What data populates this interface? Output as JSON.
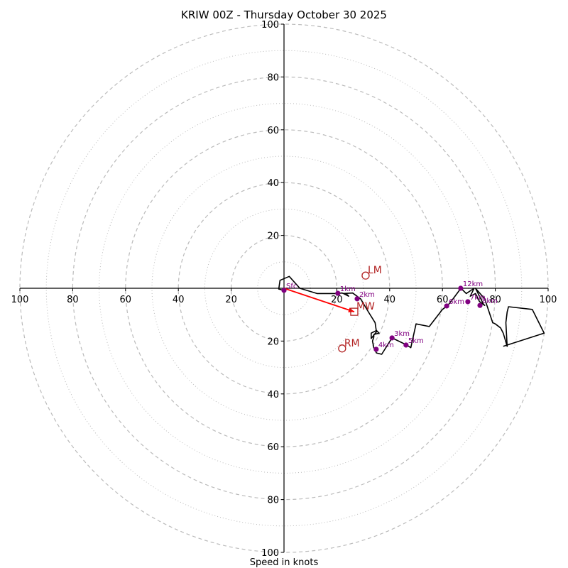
{
  "chart_data": {
    "type": "line",
    "subtype": "hodograph",
    "title": "KRIW 00Z - Thursday October 30 2025",
    "xlabel": "Speed in knots",
    "ylabel": "",
    "xlim": [
      -100,
      100
    ],
    "ylim": [
      -100,
      100
    ],
    "ring_major": [
      20,
      40,
      60,
      80,
      100
    ],
    "ring_minor": [
      10,
      30,
      50,
      70,
      90
    ],
    "x_tick_labels": [
      "100",
      "80",
      "60",
      "40",
      "20",
      "20",
      "40",
      "60",
      "80",
      "100"
    ],
    "x_tick_values": [
      -100,
      -80,
      -60,
      -40,
      -20,
      20,
      40,
      60,
      80,
      100
    ],
    "y_tick_labels": [
      "100",
      "80",
      "60",
      "40",
      "20",
      "20",
      "40",
      "60",
      "80",
      "100"
    ],
    "y_tick_values": [
      100,
      80,
      60,
      40,
      20,
      -20,
      -40,
      -60,
      -80,
      -100
    ],
    "grid": true,
    "colors": {
      "hodograph": "#000000",
      "height_markers": "#800080",
      "storm_motion": "#b22222",
      "mean_wind_vector": "#ff0000",
      "grid": "#bbbbbb"
    },
    "hodograph_line": {
      "name": "wind profile",
      "u": [
        0,
        -2,
        -1.5,
        2,
        6,
        12.5,
        20,
        22,
        24,
        24.5,
        22.5,
        26,
        29,
        32,
        34.5,
        35,
        33,
        33,
        35,
        36,
        34,
        34,
        33.5,
        34,
        35,
        37,
        40.9,
        46.5,
        48,
        50,
        55,
        60,
        62,
        64,
        67,
        69,
        72,
        70.5,
        72.5,
        74,
        76,
        75.5,
        72.5,
        76,
        79,
        80,
        82,
        83,
        84.5,
        84.5,
        84,
        84.5,
        85,
        94,
        98.5,
        83
      ],
      "v": [
        -0.8,
        -0.3,
        3,
        4.5,
        0,
        -2,
        -2,
        -1.8,
        -2.5,
        -3,
        -2,
        -1.8,
        -4,
        -9,
        -13,
        -16.5,
        -19,
        -17,
        -16,
        -17,
        -17.5,
        -18.5,
        -20,
        -22.5,
        -24.5,
        -25,
        -18.8,
        -21.5,
        -22.5,
        -13.5,
        -14.5,
        -8,
        -6.5,
        -4,
        0,
        -2,
        0,
        -3,
        -2,
        -5,
        -6.5,
        -6,
        0,
        -4,
        -13,
        -13.5,
        -15,
        -17,
        -22,
        -22,
        -13,
        -9,
        -7,
        -8,
        -17,
        -22
      ]
    },
    "height_markers": [
      {
        "label": "Sfc",
        "u": 0,
        "v": -0.8
      },
      {
        "label": "1km",
        "u": 20.4,
        "v": -1.9
      },
      {
        "label": "2km",
        "u": 27.7,
        "v": -4.0
      },
      {
        "label": "3km",
        "u": 40.9,
        "v": -18.8
      },
      {
        "label": "4km",
        "u": 34.9,
        "v": -23.1
      },
      {
        "label": "5km",
        "u": 46.2,
        "v": -21.5
      },
      {
        "label": "6km",
        "u": 61.6,
        "v": -6.7
      },
      {
        "label": "7km",
        "u": 69.6,
        "v": -5.1
      },
      {
        "label": "8km",
        "u": 74.2,
        "v": -6.5
      },
      {
        "label": "12km",
        "u": 66.9,
        "v": 0
      }
    ],
    "storm_motions": [
      {
        "label": "LM",
        "u": 30.9,
        "v": 4.8,
        "marker": "circle"
      },
      {
        "label": "MW",
        "u": 26.6,
        "v": -8.9,
        "marker": "square"
      },
      {
        "label": "RM",
        "u": 22.0,
        "v": -22.8,
        "marker": "circle"
      }
    ],
    "mean_wind_vector": {
      "from_u": 0,
      "from_v": 0,
      "to_u": 26.6,
      "to_v": -8.9
    }
  }
}
